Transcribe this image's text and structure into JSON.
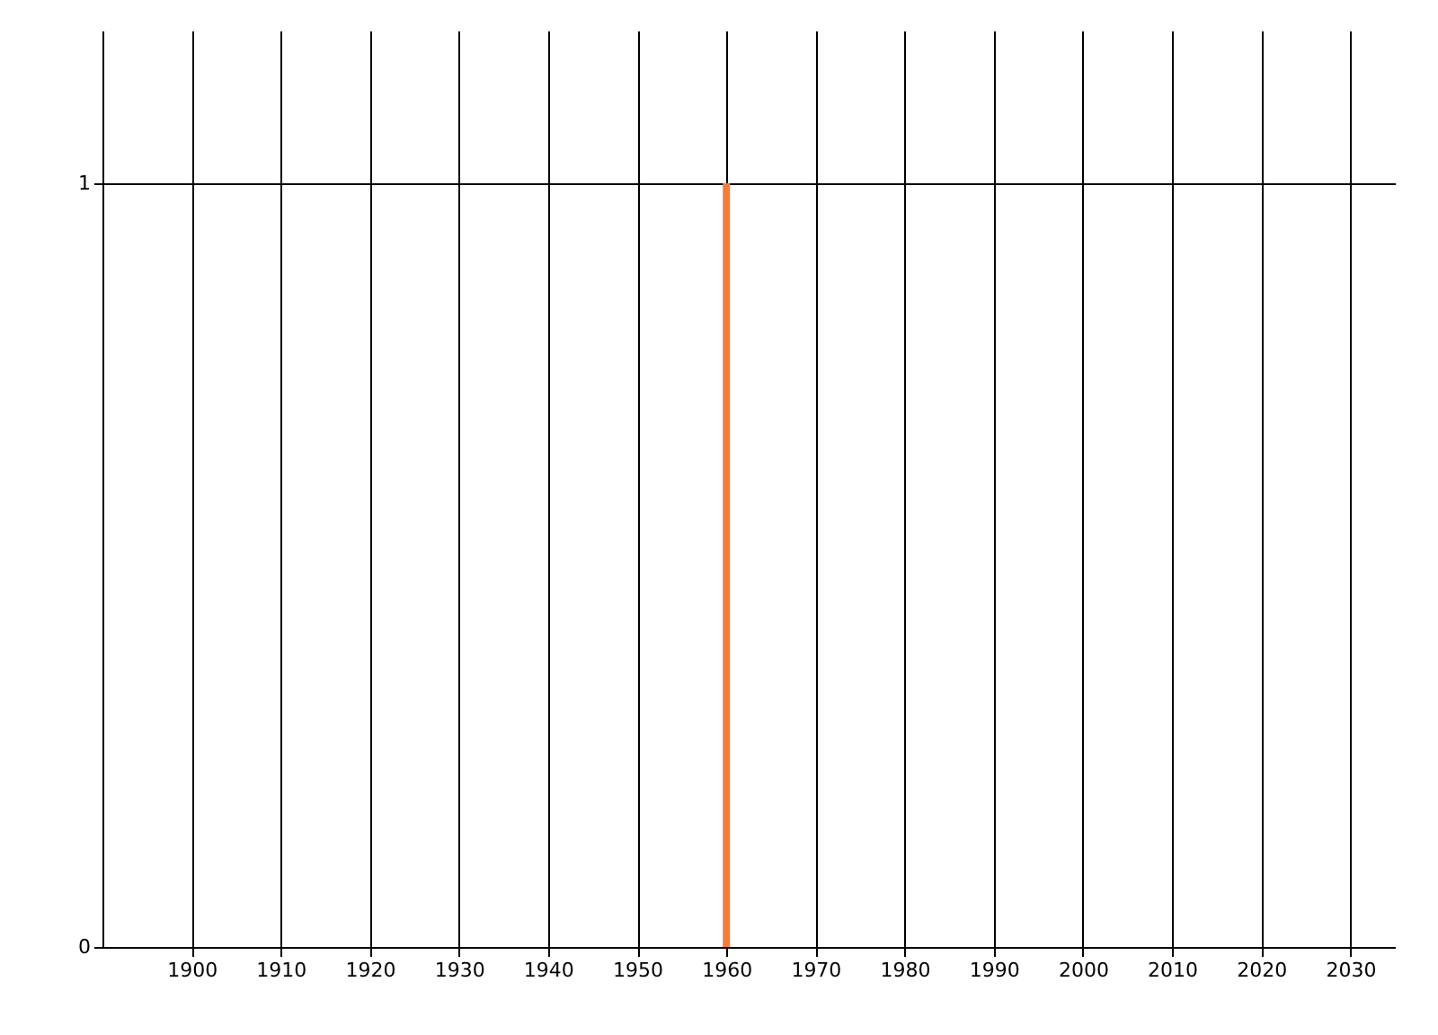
{
  "chart_data": {
    "type": "bar",
    "x": [
      1960
    ],
    "values": [
      1
    ],
    "color": "#f47b3a",
    "xlim": [
      1890,
      2035
    ],
    "xticks": [
      1900,
      1910,
      1920,
      1930,
      1940,
      1950,
      1960,
      1970,
      1980,
      1990,
      2000,
      2010,
      2020,
      2030
    ],
    "ylim": [
      0,
      1.2
    ],
    "yticks": [
      0,
      1
    ],
    "grid": true
  }
}
